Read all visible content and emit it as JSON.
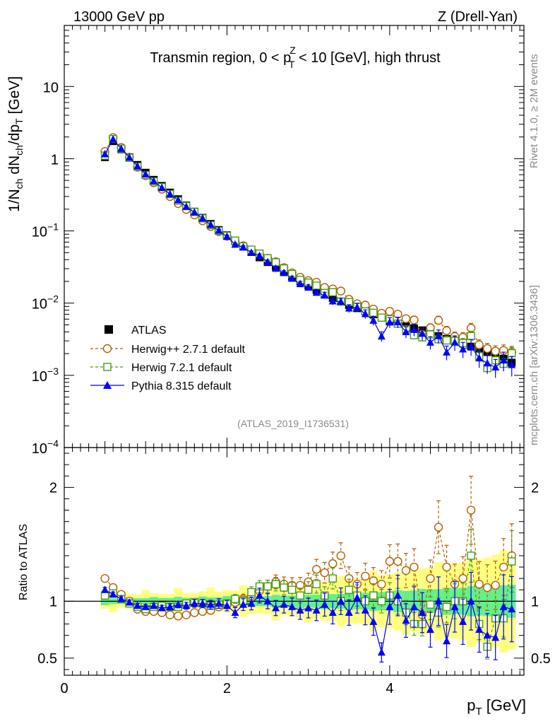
{
  "header": {
    "left": "13000 GeV pp",
    "right": "Z (Drell-Yan)",
    "title": "Transmin region, 0 < p",
    "title_sup": "Z",
    "title_sub": "T",
    "title_tail": " < 10 [GeV], high thrust"
  },
  "side": {
    "rivet": "Rivet 4.1.0, ≥ 2M events",
    "mcplots": "mcplots.cern.ch [arXiv:1306.3436]"
  },
  "analysis_id": "(ATLAS_2019_I1736531)",
  "colors": {
    "atlas": "#000000",
    "herwigpp": "#b35f00",
    "herwig7": "#4a9a17",
    "pythia": "#0000ff",
    "band_yellow": "#ffff80",
    "band_green": "#66ee88"
  },
  "legend": [
    {
      "label": "ATLAS",
      "marker": "filled-square"
    },
    {
      "label": "Herwig++ 2.7.1 default",
      "marker": "open-circle"
    },
    {
      "label": "Herwig 7.2.1 default",
      "marker": "open-square"
    },
    {
      "label": "Pythia 8.315 default",
      "marker": "filled-triangle"
    }
  ],
  "chart_data": [
    {
      "type": "scatter",
      "panel": "main",
      "title": "Transmin region, 0 < pT^Z < 10 [GeV], high thrust",
      "ylabel": "1/N_ch dN_ch/dp_T [GeV]",
      "yscale": "log",
      "xlim": [
        0,
        5.65
      ],
      "ylim": [
        0.0001,
        70
      ],
      "yticklabels": [
        "10",
        "1",
        "10^-1",
        "10^-2",
        "10^-3",
        "10^-4"
      ],
      "x": [
        0.5,
        0.6,
        0.7,
        0.8,
        0.9,
        1.0,
        1.1,
        1.2,
        1.3,
        1.4,
        1.5,
        1.6,
        1.7,
        1.8,
        1.9,
        2.0,
        2.1,
        2.2,
        2.3,
        2.4,
        2.5,
        2.6,
        2.7,
        2.8,
        2.9,
        3.0,
        3.1,
        3.2,
        3.3,
        3.4,
        3.5,
        3.6,
        3.7,
        3.8,
        3.9,
        4.0,
        4.1,
        4.2,
        4.3,
        4.4,
        4.5,
        4.6,
        4.7,
        4.8,
        4.9,
        5.0,
        5.1,
        5.2,
        5.3,
        5.4,
        5.5
      ],
      "atlas": [
        1.05,
        1.75,
        1.35,
        1.05,
        0.82,
        0.64,
        0.51,
        0.42,
        0.34,
        0.275,
        0.225,
        0.185,
        0.152,
        0.125,
        0.103,
        0.087,
        0.072,
        0.061,
        0.051,
        0.043,
        0.037,
        0.032,
        0.027,
        0.023,
        0.02,
        0.0175,
        0.0152,
        0.0132,
        0.0118,
        0.0105,
        0.0094,
        0.0085,
        0.0077,
        0.007,
        0.0063,
        0.0057,
        0.0052,
        0.0048,
        0.0045,
        0.0042,
        0.0038,
        0.0035,
        0.0032,
        0.003,
        0.0028,
        0.0025,
        0.0023,
        0.0021,
        0.0019,
        0.0017,
        0.0015
      ],
      "series": [
        {
          "name": "Herwig++ 2.7.1 default",
          "ratio": [
            1.2,
            1.12,
            1.06,
            1.0,
            0.93,
            0.91,
            0.91,
            0.9,
            0.88,
            0.87,
            0.88,
            0.9,
            0.91,
            0.92,
            0.95,
            0.97,
            0.99,
            1.02,
            1.05,
            1.09,
            1.13,
            1.17,
            1.15,
            1.14,
            1.14,
            1.17,
            1.28,
            1.25,
            1.33,
            1.4,
            1.2,
            1.15,
            1.22,
            1.18,
            1.15,
            1.35,
            1.35,
            1.27,
            1.3,
            0.88,
            1.2,
            1.65,
            1.3,
            1.15,
            1.2,
            1.8,
            1.15,
            1.12,
            1.14,
            1.3,
            1.4
          ]
        },
        {
          "name": "Herwig 7.2.1 default",
          "ratio": [
            1.05,
            1.07,
            1.02,
            0.98,
            0.95,
            0.93,
            0.95,
            0.96,
            0.95,
            0.95,
            0.98,
            0.99,
            0.98,
            0.96,
            0.97,
            0.98,
            1.02,
            1.0,
            1.08,
            1.13,
            1.13,
            1.15,
            1.12,
            1.1,
            1.05,
            1.1,
            1.15,
            1.05,
            1.2,
            1.0,
            1.1,
            1.05,
            1.0,
            1.05,
            1.0,
            1.05,
            1.0,
            0.9,
            0.8,
            0.8,
            0.97,
            0.9,
            0.95,
            1.0,
            1.0,
            1.4,
            0.8,
            0.6,
            0.85,
            0.85,
            1.35
          ]
        },
        {
          "name": "Pythia 8.315 default",
          "ratio": [
            1.1,
            1.06,
            1.02,
            0.99,
            0.96,
            0.95,
            0.96,
            0.94,
            0.95,
            0.97,
            0.96,
            0.98,
            0.98,
            0.97,
            0.98,
            0.96,
            0.9,
            0.97,
            0.98,
            1.05,
            1.0,
            0.94,
            0.97,
            0.95,
            0.92,
            0.94,
            0.92,
            0.97,
            0.9,
            1.0,
            0.9,
            1.03,
            0.92,
            0.82,
            0.55,
            0.95,
            1.05,
            0.83,
            0.95,
            0.9,
            0.75,
            1.0,
            0.65,
            0.95,
            0.82,
            1.0,
            0.75,
            0.7,
            0.68,
            0.95,
            0.93
          ]
        }
      ]
    },
    {
      "type": "scatter",
      "panel": "ratio",
      "ylabel": "Ratio to ATLAS",
      "xlabel": "p_T [GeV]",
      "xlim": [
        0,
        5.65
      ],
      "ylim": [
        0.35,
        2.35
      ],
      "xticks": [
        0,
        2,
        4
      ],
      "yticks": [
        0.5,
        1,
        2
      ]
    }
  ]
}
